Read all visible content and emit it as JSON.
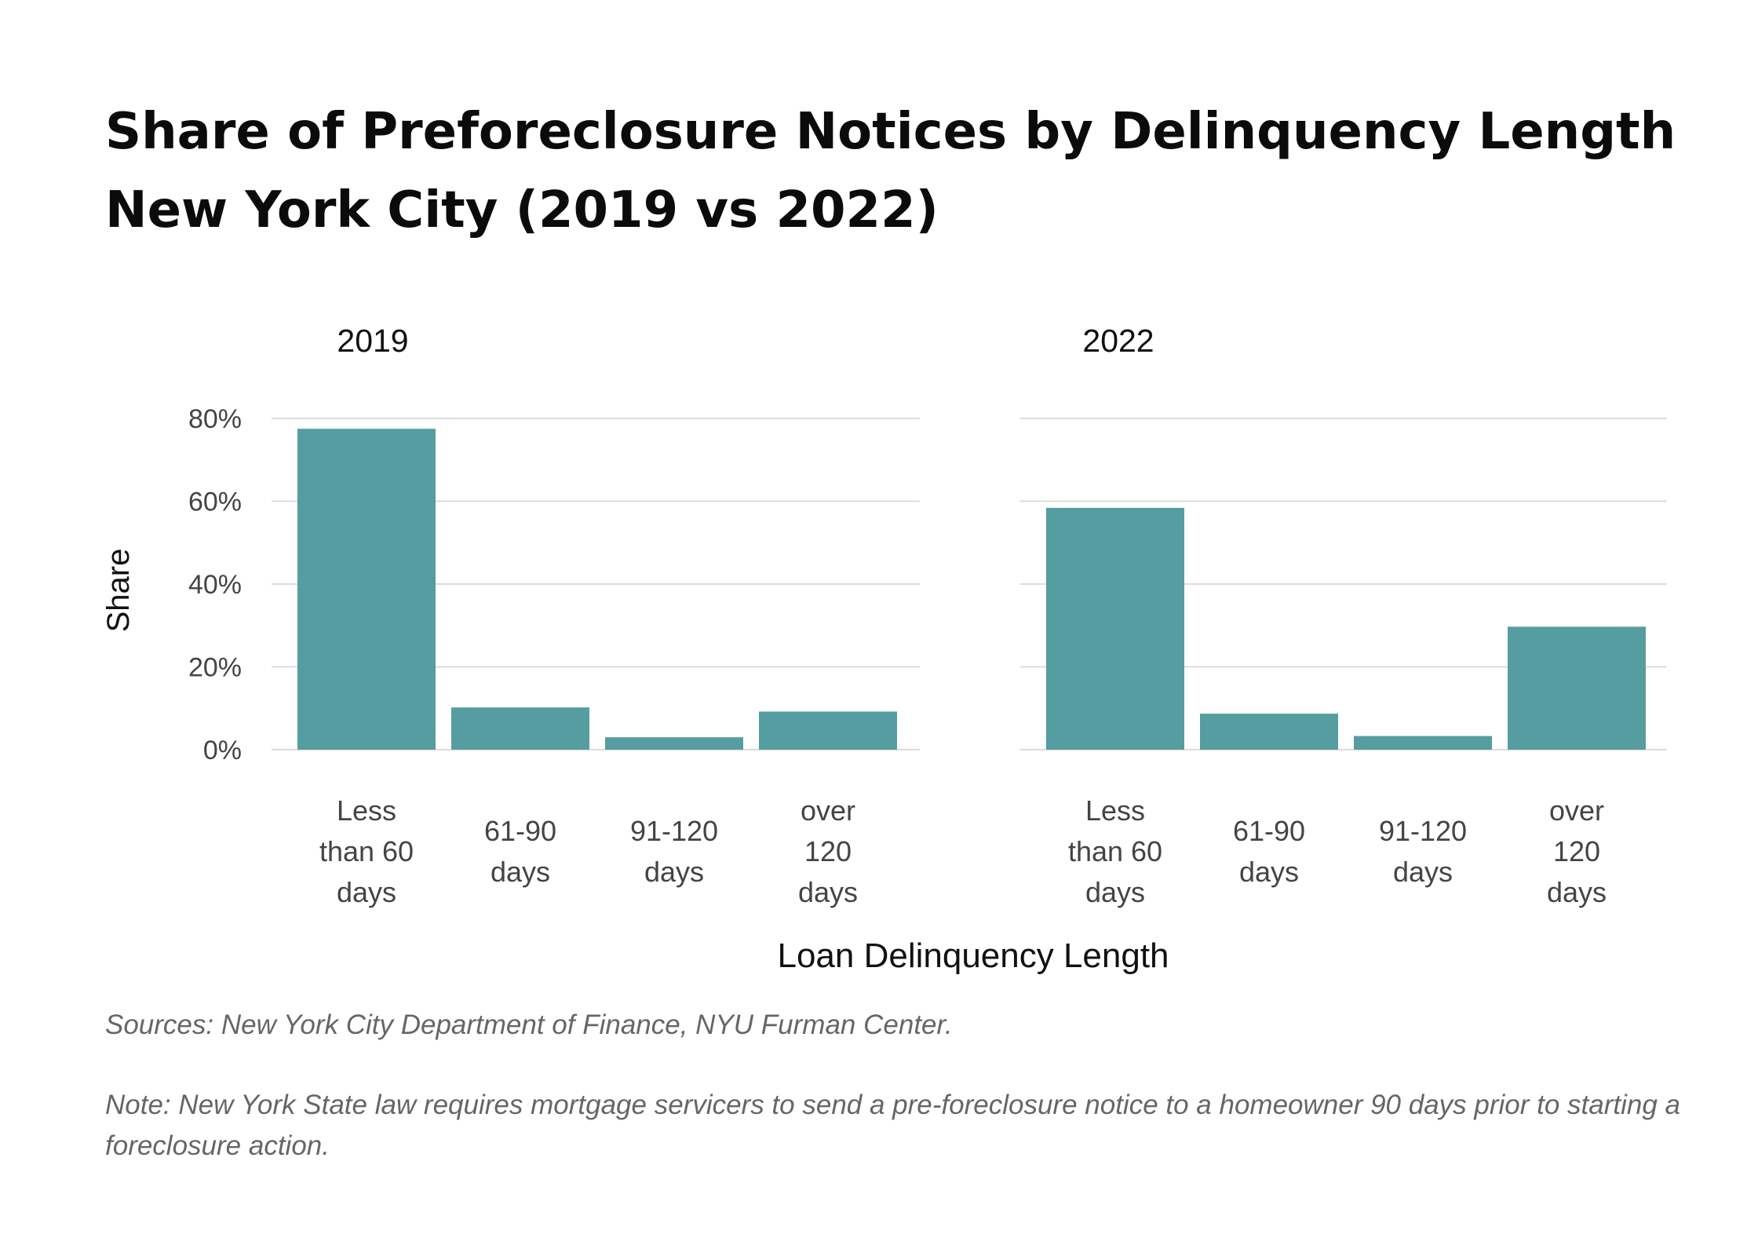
{
  "title_line1": "Share of Preforeclosure Notices by Delinquency Length",
  "title_line2": "New York City (2019 vs 2022)",
  "source": "Sources: New York City Department of Finance, NYU Furman Center.",
  "note": "Note: New York State law requires mortgage servicers to send a pre-foreclosure notice to a homeowner 90 days prior to starting a foreclosure action.",
  "colors": {
    "bar": "#559da0",
    "grid": "#dcdcdc",
    "tick_text": "#444444"
  },
  "chart_data": [
    {
      "type": "bar",
      "title": "2019",
      "categories": [
        [
          "Less",
          "than 60",
          "days"
        ],
        [
          "61-90",
          "days"
        ],
        [
          "91-120",
          "days"
        ],
        [
          "over",
          "120",
          "days"
        ]
      ],
      "values": [
        77.5,
        10.2,
        3.0,
        9.2
      ],
      "ylabel": "Share",
      "xlabel": "Loan Delinquency Length",
      "ylim": [
        0,
        80
      ],
      "yticks": [
        0,
        20,
        40,
        60,
        80
      ],
      "ytick_labels": [
        "0%",
        "20%",
        "40%",
        "60%",
        "80%"
      ],
      "grid": true
    },
    {
      "type": "bar",
      "title": "2022",
      "categories": [
        [
          "Less",
          "than 60",
          "days"
        ],
        [
          "61-90",
          "days"
        ],
        [
          "91-120",
          "days"
        ],
        [
          "over",
          "120",
          "days"
        ]
      ],
      "values": [
        58.4,
        8.7,
        3.3,
        29.7
      ],
      "ylabel": "Share",
      "xlabel": "Loan Delinquency Length",
      "ylim": [
        0,
        80
      ],
      "yticks": [
        0,
        20,
        40,
        60,
        80
      ],
      "grid": true
    }
  ]
}
